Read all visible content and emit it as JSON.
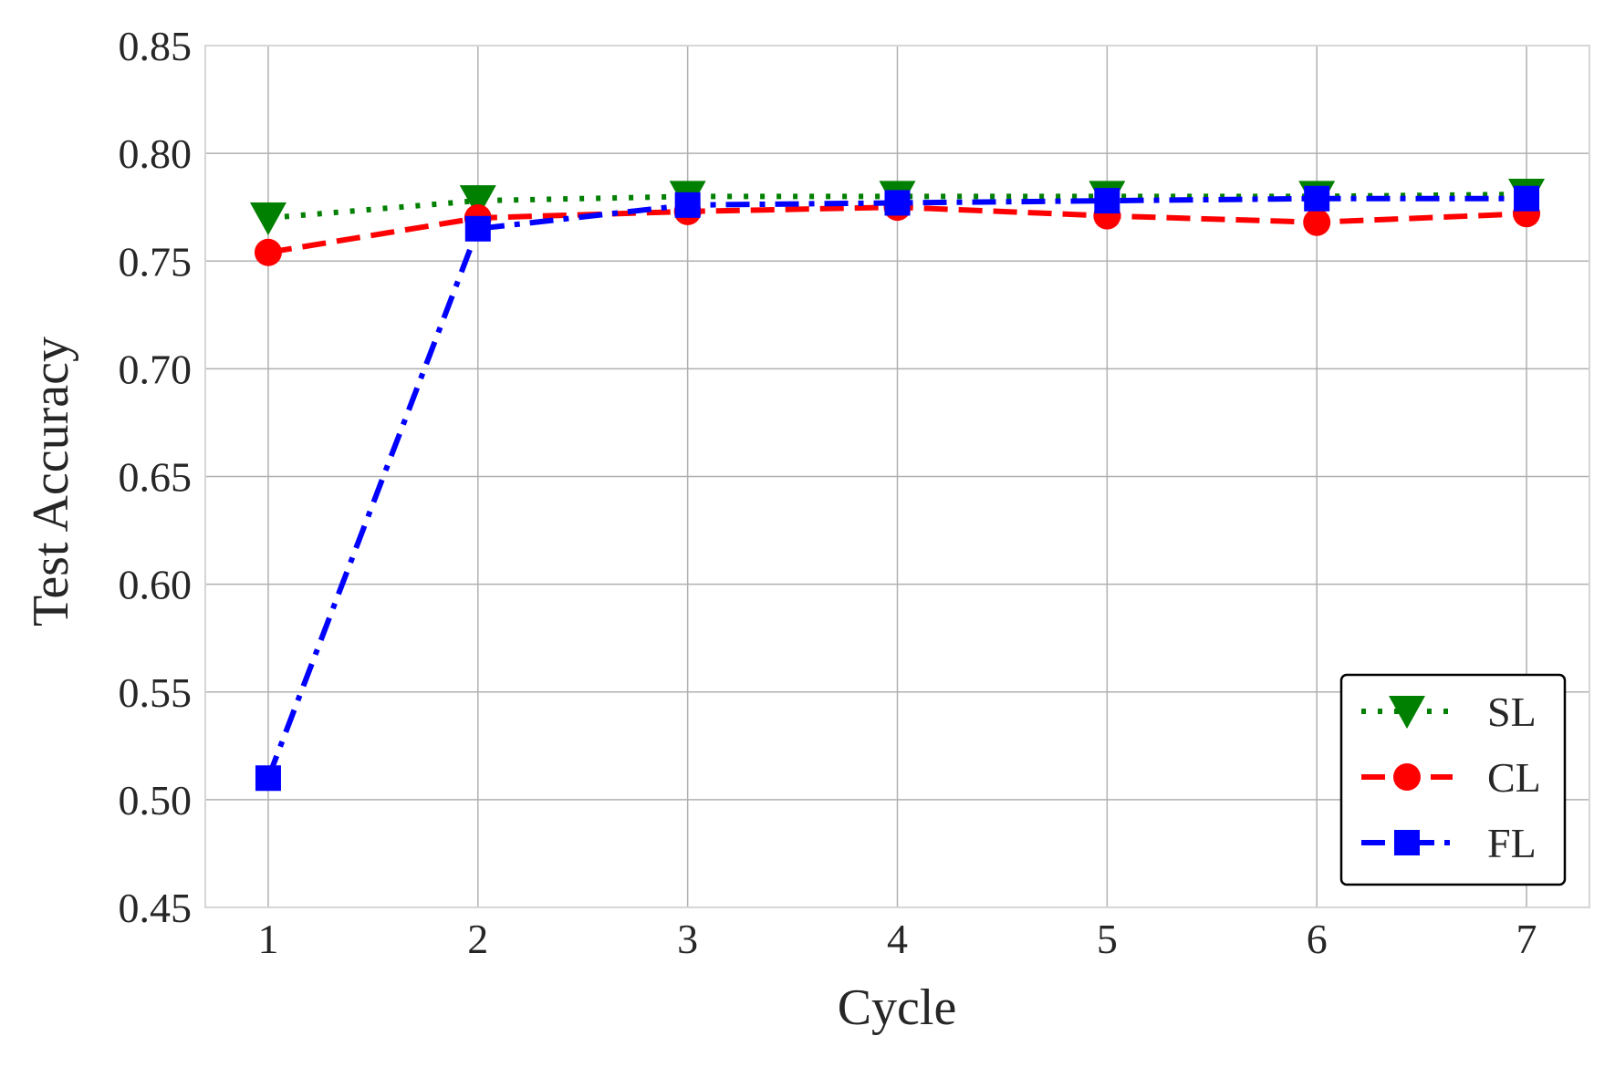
{
  "chart_data": {
    "type": "line",
    "title": "",
    "xlabel": "Cycle",
    "ylabel": "Test Accuracy",
    "x": [
      1,
      2,
      3,
      4,
      5,
      6,
      7
    ],
    "xticks": [
      "1",
      "2",
      "3",
      "4",
      "5",
      "6",
      "7"
    ],
    "xlim": [
      0.7,
      7.3
    ],
    "ylim": [
      0.45,
      0.85
    ],
    "yticks": [
      "0.45",
      "0.50",
      "0.55",
      "0.60",
      "0.65",
      "0.70",
      "0.75",
      "0.80",
      "0.85"
    ],
    "grid": true,
    "legend_position": "bottom-right",
    "series": [
      {
        "name": "SL",
        "color": "#008000",
        "line_style": "dotted",
        "marker": "triangle-down",
        "values": [
          0.77,
          0.778,
          0.78,
          0.78,
          0.78,
          0.78,
          0.781
        ]
      },
      {
        "name": "CL",
        "color": "#ff0000",
        "line_style": "dashed",
        "marker": "circle",
        "values": [
          0.754,
          0.77,
          0.773,
          0.775,
          0.771,
          0.768,
          0.772
        ]
      },
      {
        "name": "FL",
        "color": "#0000ff",
        "line_style": "dash-dot",
        "marker": "square",
        "values": [
          0.51,
          0.765,
          0.776,
          0.777,
          0.778,
          0.779,
          0.779
        ]
      }
    ]
  }
}
